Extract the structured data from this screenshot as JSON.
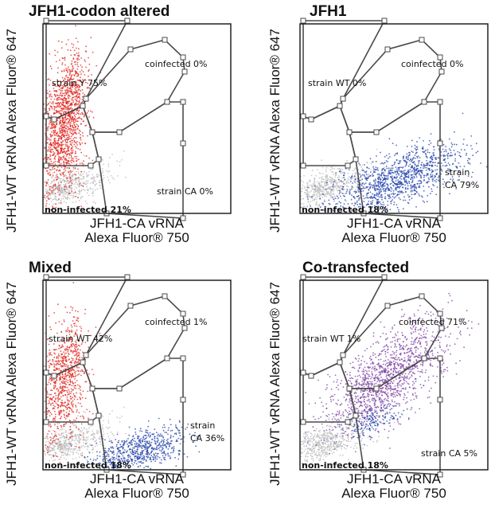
{
  "figure": {
    "y_axis_label": "JFH1-WT vRNA Alexa Fluor® 647",
    "x_axis_label_line1": "JFH1-CA vRNA",
    "x_axis_label_line2": "Alexa Fluor® 750"
  },
  "colors": {
    "strain_wt_events": "#e0231c",
    "strain_ca_events": "#1f3fa8",
    "coinfected_events": "#7b3fa0",
    "non_infected_events": "#b9b9b9",
    "gate_line": "#4a4a4a",
    "gate_handle": "#ffffff"
  },
  "chart_data": [
    {
      "type": "scatter",
      "title": "JFH1-codon altered",
      "gates": [
        {
          "name": "coinfected",
          "label": "coinfected 0%",
          "percent": 0
        },
        {
          "name": "strain Y",
          "label": "strain Y 75%",
          "percent": 75
        },
        {
          "name": "strain CA",
          "label": "strain CA 0%",
          "percent": 0
        },
        {
          "name": "non-infected",
          "label": "non-infected 21%",
          "percent": 21
        }
      ]
    },
    {
      "type": "scatter",
      "title": "JFH1",
      "gates": [
        {
          "name": "coinfected",
          "label": "coinfected 0%",
          "percent": 0
        },
        {
          "name": "strain WT",
          "label": "strain WT 0%",
          "percent": 0
        },
        {
          "name": "strain CA",
          "label_line1": "strain",
          "label_line2": "CA 79%",
          "percent": 79
        },
        {
          "name": "non-infected",
          "label": "non-infected 18%",
          "percent": 18
        }
      ]
    },
    {
      "type": "scatter",
      "title": "Mixed",
      "gates": [
        {
          "name": "coinfected",
          "label": "coinfected 1%",
          "percent": 1
        },
        {
          "name": "strain WT",
          "label": "strain WT 42%",
          "percent": 42
        },
        {
          "name": "strain CA",
          "label_line1": "strain",
          "label_line2": "CA 36%",
          "percent": 36
        },
        {
          "name": "non-infected",
          "label": "non-infected 18%",
          "percent": 18
        }
      ]
    },
    {
      "type": "scatter",
      "title": "Co-transfected",
      "gates": [
        {
          "name": "coinfected",
          "label": "coinfected 71%",
          "percent": 71
        },
        {
          "name": "strain WT",
          "label": "strain WT 1%",
          "percent": 1
        },
        {
          "name": "strain CA",
          "label": "strain CA 5%",
          "percent": 5
        },
        {
          "name": "non-infected",
          "label": "non-infected 18%",
          "percent": 18
        }
      ]
    }
  ]
}
